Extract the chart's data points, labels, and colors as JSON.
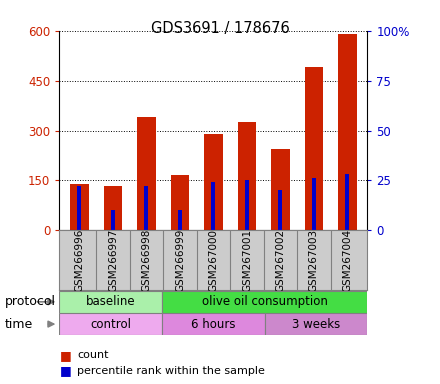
{
  "title": "GDS3691 / 178676",
  "samples": [
    "GSM266996",
    "GSM266997",
    "GSM266998",
    "GSM266999",
    "GSM267000",
    "GSM267001",
    "GSM267002",
    "GSM267003",
    "GSM267004"
  ],
  "count_values": [
    140,
    132,
    340,
    165,
    290,
    325,
    245,
    490,
    590
  ],
  "percentile_values": [
    22,
    10,
    22,
    10,
    24,
    25,
    20,
    26,
    28
  ],
  "left_ylim": [
    0,
    600
  ],
  "right_ylim": [
    0,
    100
  ],
  "left_yticks": [
    0,
    150,
    300,
    450,
    600
  ],
  "right_yticks": [
    0,
    25,
    50,
    75,
    100
  ],
  "right_yticklabels": [
    "0",
    "25",
    "50",
    "75",
    "100%"
  ],
  "bar_color_red": "#cc2200",
  "bar_color_blue": "#0000cc",
  "grid_color": "#000000",
  "protocol_groups": [
    {
      "label": "baseline",
      "start": 0,
      "end": 3,
      "color": "#aaf0aa"
    },
    {
      "label": "olive oil consumption",
      "start": 3,
      "end": 9,
      "color": "#44dd44"
    }
  ],
  "time_groups": [
    {
      "label": "control",
      "start": 0,
      "end": 3,
      "color": "#eeaaee"
    },
    {
      "label": "6 hours",
      "start": 3,
      "end": 6,
      "color": "#dd88dd"
    },
    {
      "label": "3 weeks",
      "start": 6,
      "end": 9,
      "color": "#cc88cc"
    }
  ],
  "legend_count_label": "count",
  "legend_percentile_label": "percentile rank within the sample",
  "red_bar_width": 0.55,
  "blue_bar_width": 0.12,
  "tick_label_rotation": 90,
  "background_color": "#ffffff",
  "plot_bg_color": "#ffffff",
  "axis_label_color_left": "#cc2200",
  "axis_label_color_right": "#0000cc",
  "tick_bg_color": "#cccccc"
}
